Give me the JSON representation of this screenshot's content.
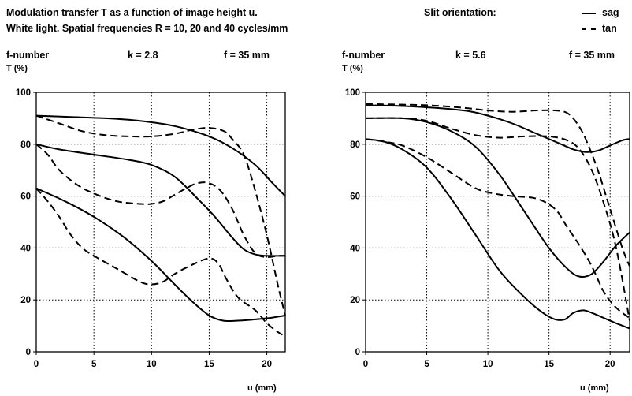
{
  "header": {
    "title_line1": "Modulation transfer T as a function of image height u.",
    "title_line2": "White light. Spatial frequencies R = 10, 20 and 40 cycles/mm",
    "slit_label": "Slit orientation:",
    "legend_sag": "sag",
    "legend_tan": "tan"
  },
  "colors": {
    "line": "#000000",
    "grid": "#000000",
    "background": "#ffffff"
  },
  "chart_data": [
    {
      "type": "line",
      "fnumber_label": "f-number",
      "k_label": "k = 2.8",
      "f_label": "f = 35 mm",
      "ylabel": "T (%)",
      "xlabel": "u (mm)",
      "xlim": [
        0,
        21.6
      ],
      "ylim": [
        0,
        100
      ],
      "xticks": [
        0,
        5,
        10,
        15,
        20
      ],
      "yticks": [
        0,
        20,
        40,
        60,
        80,
        100
      ],
      "grid": true,
      "series": [
        {
          "orientation": "sag",
          "frequency": 10,
          "points": [
            [
              0,
              91
            ],
            [
              3,
              90.5
            ],
            [
              6,
              90
            ],
            [
              9,
              89
            ],
            [
              12,
              87
            ],
            [
              15,
              83
            ],
            [
              17,
              78.5
            ],
            [
              19,
              72
            ],
            [
              20.5,
              65
            ],
            [
              21.6,
              60
            ]
          ]
        },
        {
          "orientation": "tan",
          "frequency": 10,
          "points": [
            [
              0,
              91
            ],
            [
              2,
              88
            ],
            [
              4,
              85
            ],
            [
              6,
              83.5
            ],
            [
              8,
              83
            ],
            [
              10,
              83
            ],
            [
              12,
              84
            ],
            [
              13.5,
              85.5
            ],
            [
              15,
              86.3
            ],
            [
              16.3,
              85
            ],
            [
              17,
              82
            ],
            [
              18,
              76
            ],
            [
              19,
              62
            ],
            [
              20,
              45
            ],
            [
              21,
              25
            ],
            [
              21.6,
              14
            ]
          ]
        },
        {
          "orientation": "sag",
          "frequency": 20,
          "points": [
            [
              0,
              80
            ],
            [
              2,
              78
            ],
            [
              5,
              76
            ],
            [
              8,
              74
            ],
            [
              10,
              72
            ],
            [
              12,
              67.5
            ],
            [
              14,
              59
            ],
            [
              15.5,
              52
            ],
            [
              17,
              44
            ],
            [
              18,
              39.5
            ],
            [
              19,
              37.5
            ],
            [
              20,
              37
            ],
            [
              21.6,
              37
            ]
          ]
        },
        {
          "orientation": "tan",
          "frequency": 20,
          "points": [
            [
              0,
              80
            ],
            [
              1,
              76
            ],
            [
              2,
              70
            ],
            [
              3.5,
              64.5
            ],
            [
              5,
              61
            ],
            [
              7,
              58
            ],
            [
              9,
              57
            ],
            [
              10,
              57
            ],
            [
              11,
              58
            ],
            [
              12,
              60.5
            ],
            [
              13,
              63
            ],
            [
              14,
              65
            ],
            [
              15,
              65
            ],
            [
              16,
              62
            ],
            [
              17,
              55
            ],
            [
              18,
              45
            ],
            [
              19,
              38
            ],
            [
              20,
              36.5
            ],
            [
              21,
              37
            ],
            [
              21.6,
              37
            ]
          ]
        },
        {
          "orientation": "sag",
          "frequency": 40,
          "points": [
            [
              0,
              63
            ],
            [
              2.5,
              58
            ],
            [
              5,
              52
            ],
            [
              7.5,
              44.5
            ],
            [
              10,
              35
            ],
            [
              12,
              26
            ],
            [
              13.5,
              19.5
            ],
            [
              15,
              14
            ],
            [
              16.2,
              12
            ],
            [
              17.5,
              12
            ],
            [
              19,
              12.5
            ],
            [
              20.5,
              13.2
            ],
            [
              21.6,
              14
            ]
          ]
        },
        {
          "orientation": "tan",
          "frequency": 40,
          "points": [
            [
              0,
              63
            ],
            [
              1,
              58
            ],
            [
              2,
              52
            ],
            [
              3,
              45
            ],
            [
              4,
              40
            ],
            [
              5,
              37
            ],
            [
              7,
              32
            ],
            [
              9,
              27
            ],
            [
              10,
              26
            ],
            [
              11,
              27
            ],
            [
              12,
              30
            ],
            [
              13.5,
              33.5
            ],
            [
              15,
              36
            ],
            [
              15.8,
              34
            ],
            [
              16.5,
              28
            ],
            [
              17.5,
              21
            ],
            [
              19,
              16
            ],
            [
              20,
              11
            ],
            [
              21,
              7.5
            ],
            [
              21.6,
              6
            ]
          ]
        }
      ]
    },
    {
      "type": "line",
      "fnumber_label": "f-number",
      "k_label": "k = 5.6",
      "f_label": "f = 35 mm",
      "ylabel": "T (%)",
      "xlabel": "u (mm)",
      "xlim": [
        0,
        21.6
      ],
      "ylim": [
        0,
        100
      ],
      "xticks": [
        0,
        5,
        10,
        15,
        20
      ],
      "yticks": [
        0,
        20,
        40,
        60,
        80,
        100
      ],
      "grid": true,
      "series": [
        {
          "orientation": "sag",
          "frequency": 10,
          "points": [
            [
              0,
              95
            ],
            [
              4,
              94.5
            ],
            [
              8,
              93
            ],
            [
              10,
              91
            ],
            [
              12,
              88
            ],
            [
              14,
              84
            ],
            [
              16,
              80
            ],
            [
              17,
              78
            ],
            [
              18,
              77
            ],
            [
              19,
              77.5
            ],
            [
              20,
              79.5
            ],
            [
              21,
              81.5
            ],
            [
              21.6,
              82
            ]
          ]
        },
        {
          "orientation": "tan",
          "frequency": 10,
          "points": [
            [
              0,
              95.5
            ],
            [
              5,
              95
            ],
            [
              8,
              94
            ],
            [
              10,
              93
            ],
            [
              12,
              92.5
            ],
            [
              14,
              93
            ],
            [
              15.5,
              93
            ],
            [
              16.5,
              92
            ],
            [
              17.3,
              88
            ],
            [
              18,
              82
            ],
            [
              19,
              70
            ],
            [
              20,
              55
            ],
            [
              21,
              40
            ],
            [
              21.6,
              33
            ]
          ]
        },
        {
          "orientation": "sag",
          "frequency": 20,
          "points": [
            [
              0,
              90
            ],
            [
              3,
              90
            ],
            [
              5,
              88.5
            ],
            [
              7,
              85
            ],
            [
              9,
              79
            ],
            [
              11,
              68
            ],
            [
              13,
              54
            ],
            [
              15,
              40
            ],
            [
              16.5,
              32
            ],
            [
              17.5,
              29
            ],
            [
              18.5,
              30
            ],
            [
              19.5,
              35
            ],
            [
              20.5,
              41
            ],
            [
              21.6,
              46
            ]
          ]
        },
        {
          "orientation": "tan",
          "frequency": 20,
          "points": [
            [
              0,
              90
            ],
            [
              3,
              90
            ],
            [
              5,
              89
            ],
            [
              7,
              86
            ],
            [
              9,
              83.5
            ],
            [
              11,
              82.5
            ],
            [
              13,
              83
            ],
            [
              15,
              83
            ],
            [
              16.5,
              81.5
            ],
            [
              17.5,
              78
            ],
            [
              18.5,
              70
            ],
            [
              19.5,
              57
            ],
            [
              20.5,
              40
            ],
            [
              21.6,
              12
            ]
          ]
        },
        {
          "orientation": "sag",
          "frequency": 40,
          "points": [
            [
              0,
              82
            ],
            [
              1.5,
              81
            ],
            [
              3,
              78
            ],
            [
              5,
              71
            ],
            [
              7,
              59
            ],
            [
              9,
              45
            ],
            [
              11,
              31
            ],
            [
              13,
              21
            ],
            [
              14.5,
              15
            ],
            [
              15.5,
              12.5
            ],
            [
              16.3,
              12.5
            ],
            [
              17,
              15
            ],
            [
              17.8,
              16
            ],
            [
              18.5,
              15
            ],
            [
              19.5,
              13
            ],
            [
              20.5,
              11
            ],
            [
              21.6,
              9
            ]
          ]
        },
        {
          "orientation": "tan",
          "frequency": 40,
          "points": [
            [
              0,
              82
            ],
            [
              1.5,
              81
            ],
            [
              3,
              79.5
            ],
            [
              5,
              75
            ],
            [
              7,
              69
            ],
            [
              9,
              63
            ],
            [
              10.5,
              61
            ],
            [
              12,
              60
            ],
            [
              14,
              59
            ],
            [
              15.5,
              55
            ],
            [
              16.5,
              48
            ],
            [
              17.5,
              41
            ],
            [
              18.5,
              33
            ],
            [
              19.5,
              23
            ],
            [
              20.5,
              17
            ],
            [
              21.6,
              13
            ]
          ]
        }
      ]
    }
  ]
}
